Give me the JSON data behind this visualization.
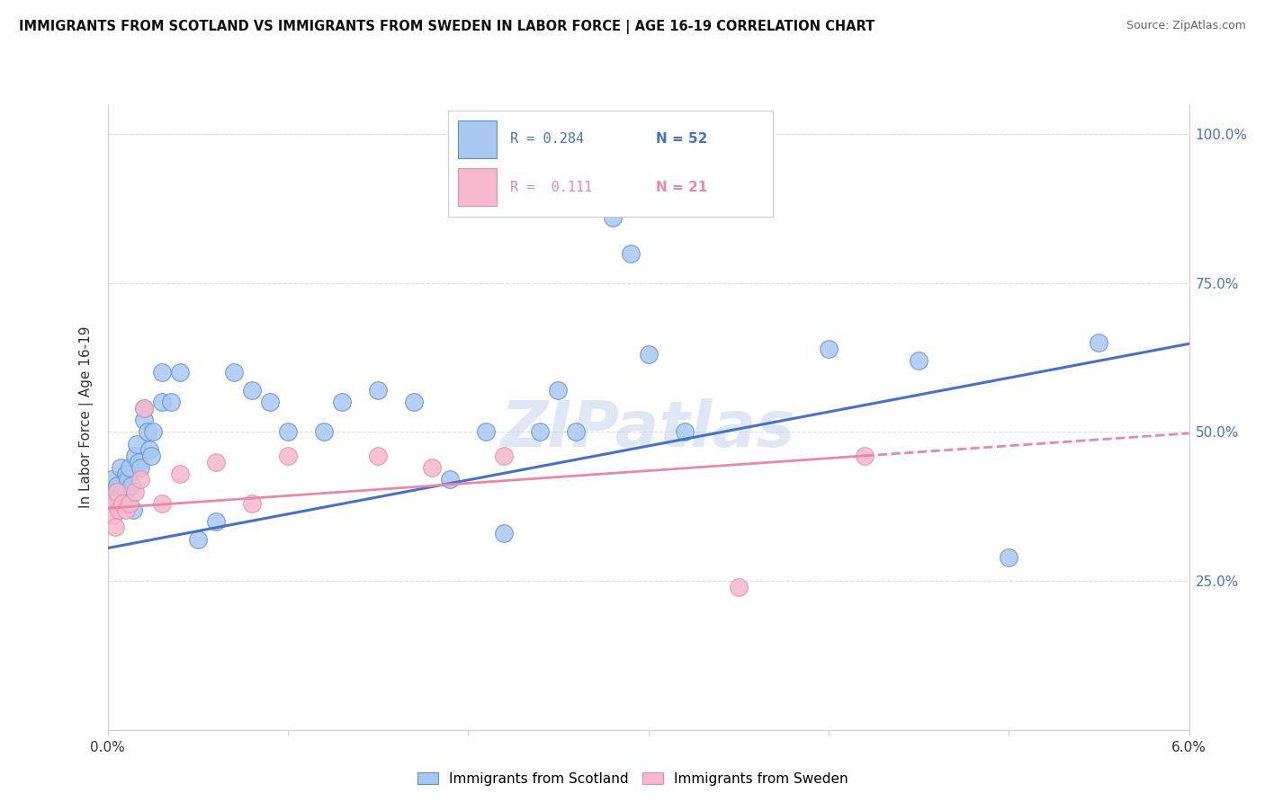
{
  "title": "IMMIGRANTS FROM SCOTLAND VS IMMIGRANTS FROM SWEDEN IN LABOR FORCE | AGE 16-19 CORRELATION CHART",
  "source": "Source: ZipAtlas.com",
  "ylabel": "In Labor Force | Age 16-19",
  "xlim": [
    0.0,
    0.06
  ],
  "ylim": [
    0.0,
    1.05
  ],
  "xticks": [
    0.0,
    0.01,
    0.02,
    0.03,
    0.04,
    0.05,
    0.06
  ],
  "xticklabels": [
    "0.0%",
    "",
    "",
    "",
    "",
    "",
    "6.0%"
  ],
  "yticks": [
    0.0,
    0.25,
    0.5,
    0.75,
    1.0
  ],
  "yticklabels": [
    "",
    "25.0%",
    "50.0%",
    "75.0%",
    "100.0%"
  ],
  "scotland_color": "#a8c8f0",
  "sweden_color": "#f5b8cc",
  "scotland_edge_color": "#6090d0",
  "sweden_edge_color": "#e090a8",
  "scotland_line_color": "#4472c4",
  "sweden_line_color": "#e888a8",
  "legend_text_color": "#4472c4",
  "legend_sweden_text_color": "#e888a8",
  "scotland_R": 0.284,
  "scotland_N": 52,
  "sweden_R": 0.111,
  "sweden_N": 21,
  "watermark": "ZIPatlas",
  "scotland_x": [
    0.0002,
    0.0003,
    0.0004,
    0.0005,
    0.0006,
    0.0007,
    0.0008,
    0.0009,
    0.001,
    0.001,
    0.0011,
    0.0012,
    0.0013,
    0.0014,
    0.0015,
    0.0016,
    0.0017,
    0.0018,
    0.002,
    0.002,
    0.0022,
    0.0023,
    0.0024,
    0.0025,
    0.003,
    0.003,
    0.0035,
    0.004,
    0.005,
    0.006,
    0.007,
    0.008,
    0.009,
    0.01,
    0.012,
    0.013,
    0.015,
    0.017,
    0.019,
    0.021,
    0.022,
    0.024,
    0.025,
    0.026,
    0.028,
    0.029,
    0.03,
    0.032,
    0.04,
    0.045,
    0.05,
    0.055
  ],
  "scotland_y": [
    0.42,
    0.4,
    0.38,
    0.41,
    0.39,
    0.44,
    0.4,
    0.38,
    0.43,
    0.4,
    0.42,
    0.44,
    0.41,
    0.37,
    0.46,
    0.48,
    0.45,
    0.44,
    0.52,
    0.54,
    0.5,
    0.47,
    0.46,
    0.5,
    0.6,
    0.55,
    0.55,
    0.6,
    0.32,
    0.35,
    0.6,
    0.57,
    0.55,
    0.5,
    0.5,
    0.55,
    0.57,
    0.55,
    0.42,
    0.5,
    0.33,
    0.5,
    0.57,
    0.5,
    0.86,
    0.8,
    0.63,
    0.5,
    0.64,
    0.62,
    0.29,
    0.65
  ],
  "sweden_x": [
    0.0002,
    0.0003,
    0.0004,
    0.0005,
    0.0006,
    0.0008,
    0.001,
    0.0012,
    0.0015,
    0.0018,
    0.002,
    0.003,
    0.004,
    0.006,
    0.008,
    0.01,
    0.015,
    0.018,
    0.022,
    0.035,
    0.042
  ],
  "sweden_y": [
    0.38,
    0.36,
    0.34,
    0.4,
    0.37,
    0.38,
    0.37,
    0.38,
    0.4,
    0.42,
    0.54,
    0.38,
    0.43,
    0.45,
    0.38,
    0.46,
    0.46,
    0.44,
    0.46,
    0.24,
    0.46
  ]
}
